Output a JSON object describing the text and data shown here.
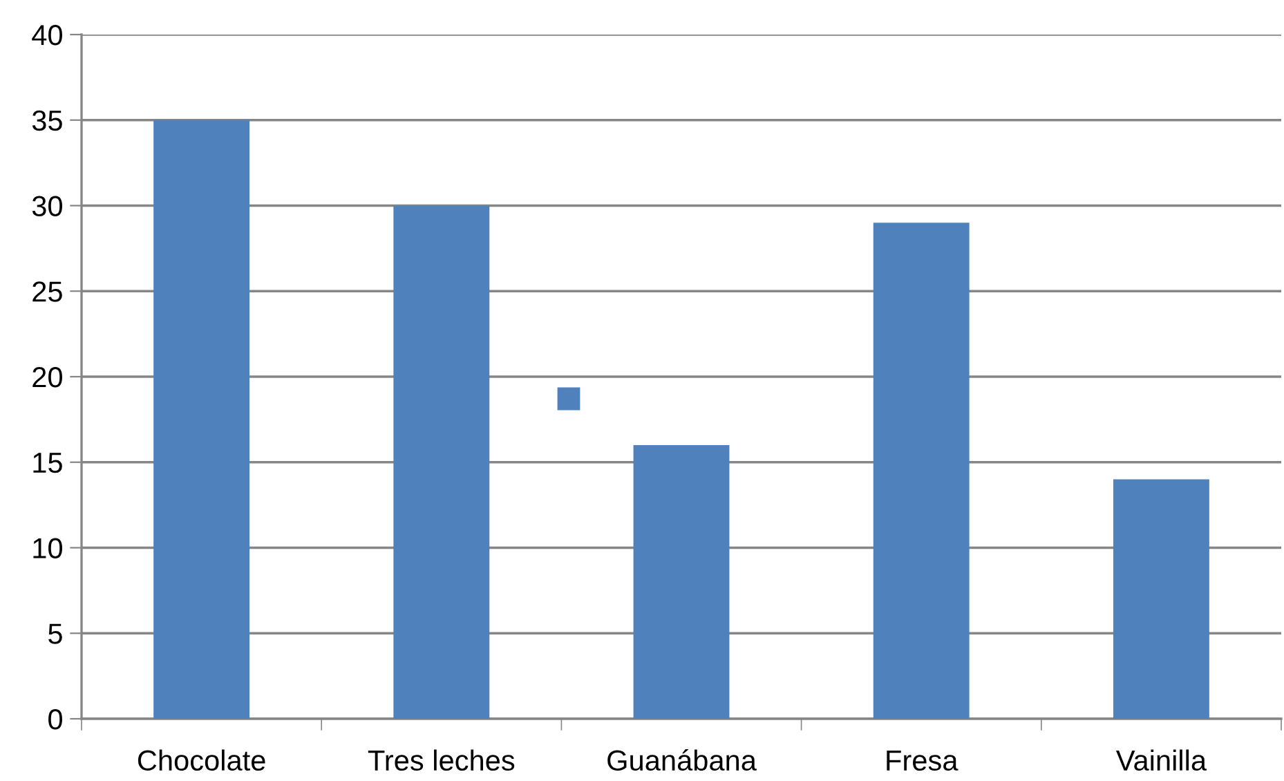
{
  "chart_data": {
    "type": "bar",
    "categories": [
      "Chocolate",
      "Tres leches",
      "Guanábana",
      "Fresa",
      "Vainilla"
    ],
    "series": [
      {
        "color": "#4f81bd",
        "values": [
          35,
          30,
          16,
          29,
          14
        ]
      }
    ],
    "ylim": [
      0,
      40
    ],
    "yticks": [
      0,
      5,
      10,
      15,
      20,
      25,
      30,
      35,
      40
    ],
    "grid": "y"
  }
}
